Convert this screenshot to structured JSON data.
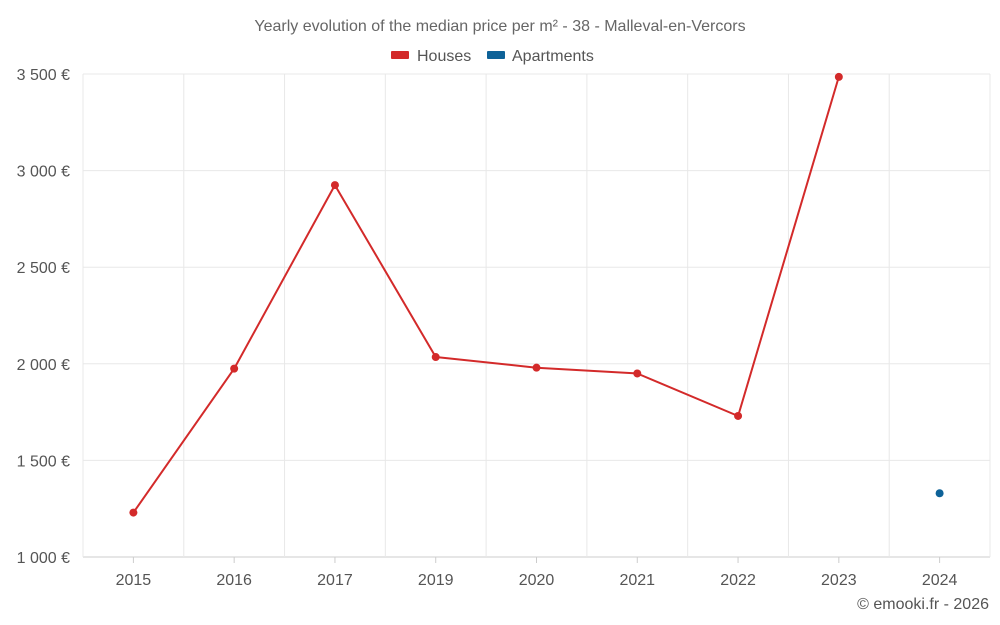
{
  "chart_data": {
    "type": "line",
    "title": "Yearly evolution of the median price per m² - 38 - Malleval-en-Vercors",
    "categories": [
      "2015",
      "2016",
      "2017",
      "2019",
      "2020",
      "2021",
      "2022",
      "2023",
      "2024"
    ],
    "series": [
      {
        "name": "Houses",
        "color": "#d32a2a",
        "values": [
          1230,
          1975,
          2925,
          2035,
          1980,
          1950,
          1730,
          3485,
          null
        ]
      },
      {
        "name": "Apartments",
        "color": "#0e6298",
        "values": [
          null,
          null,
          null,
          null,
          null,
          null,
          null,
          null,
          1330
        ]
      }
    ],
    "ylim": [
      1000,
      3500
    ],
    "yticks": [
      1000,
      1500,
      2000,
      2500,
      3000,
      3500
    ],
    "ytick_labels": [
      "1 000 €",
      "1 500 €",
      "2 000 €",
      "2 500 €",
      "3 000 €",
      "3 500 €"
    ],
    "xlabel": "",
    "ylabel": "",
    "grid": true,
    "legend_position": "top-center"
  },
  "credit": "© emooki.fr - 2026"
}
